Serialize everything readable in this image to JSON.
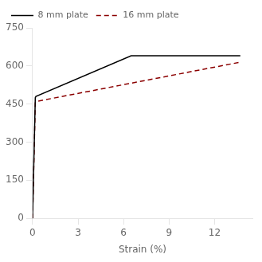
{
  "chart_data": {
    "type": "line",
    "xlabel": "Strain (%)",
    "series": [
      {
        "name": "8 mm plate",
        "color": "#000000",
        "line_style": "solid",
        "x": [
          0,
          0.18,
          0.22,
          6.5,
          13.7
        ],
        "values": [
          0,
          475,
          480,
          640,
          640
        ]
      },
      {
        "name": "16 mm plate",
        "color": "#8B0000",
        "line_style": "dashed",
        "x": [
          0,
          0.18,
          0.22,
          13.7
        ],
        "values": [
          0,
          455,
          460,
          615
        ]
      }
    ],
    "xlim": [
      0,
      14.5
    ],
    "ylim": [
      0,
      750
    ],
    "xticks": [
      0,
      3,
      6,
      9,
      12
    ],
    "yticks": [
      0,
      150,
      300,
      450,
      600,
      750
    ],
    "legend": "upper left",
    "grid": false
  }
}
